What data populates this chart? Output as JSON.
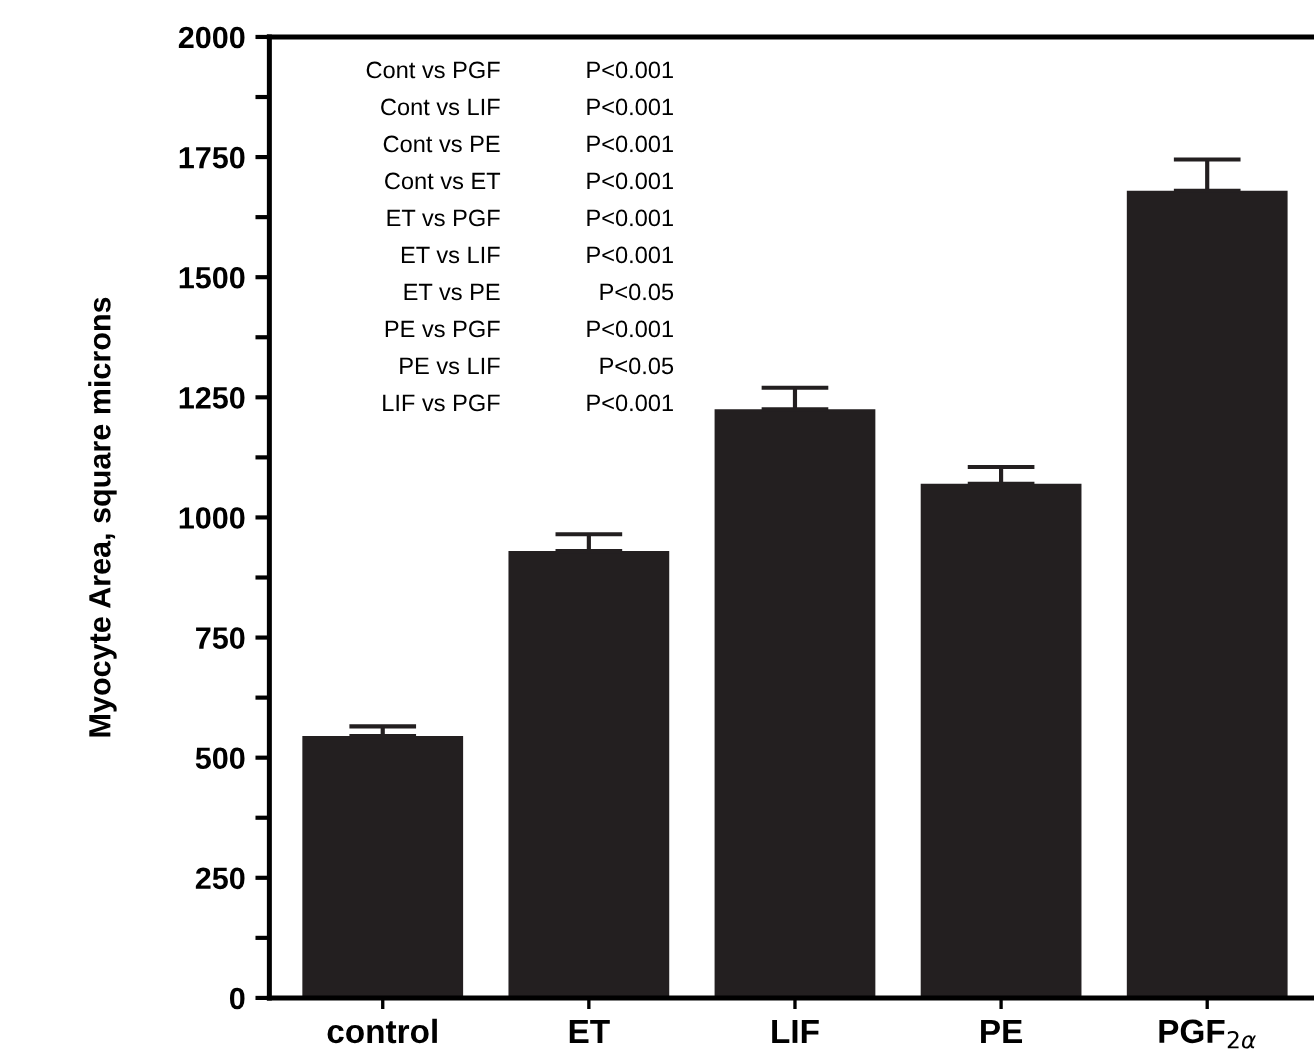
{
  "chart_data": {
    "type": "bar",
    "ylabel": "Myocyte Area, square microns",
    "categories": [
      "control",
      "ET",
      "LIF",
      "PE",
      "PGF$_{2α}$"
    ],
    "values": [
      545,
      930,
      1225,
      1070,
      1680
    ],
    "errors": [
      [
        545,
        565
      ],
      [
        930,
        965
      ],
      [
        1225,
        1270
      ],
      [
        1070,
        1105
      ],
      [
        1680,
        1745
      ]
    ],
    "color": "#231f20",
    "ylim": [
      0,
      2000
    ],
    "yticks": [
      0,
      {
        "value": 125,
        "label": null
      },
      250,
      {
        "value": 375,
        "label": null
      },
      500,
      {
        "value": 625,
        "label": null
      },
      750,
      {
        "value": 875,
        "label": null
      },
      1000,
      {
        "value": 1125,
        "label": null
      },
      1250,
      {
        "value": 1375,
        "label": null
      },
      1500,
      {
        "value": 1625,
        "label": null
      },
      1750,
      {
        "value": 1875,
        "label": null
      },
      2000
    ],
    "grid": false,
    "annotations": [
      "Cont vs PGF",
      "Cont vs LIF",
      "Cont vs PE",
      "Cont vs ET",
      "ET vs PGF",
      "ET vs LIF",
      "ET vs PE",
      "PE vs PGF",
      "PE vs LIF",
      "LIF vs PGF",
      "P<0.001",
      "P<0.001",
      "P<0.001",
      "P<0.001",
      "P<0.001",
      "P<0.001",
      "P<0.05",
      "P<0.001",
      "P<0.05",
      "P<0.001"
    ]
  }
}
